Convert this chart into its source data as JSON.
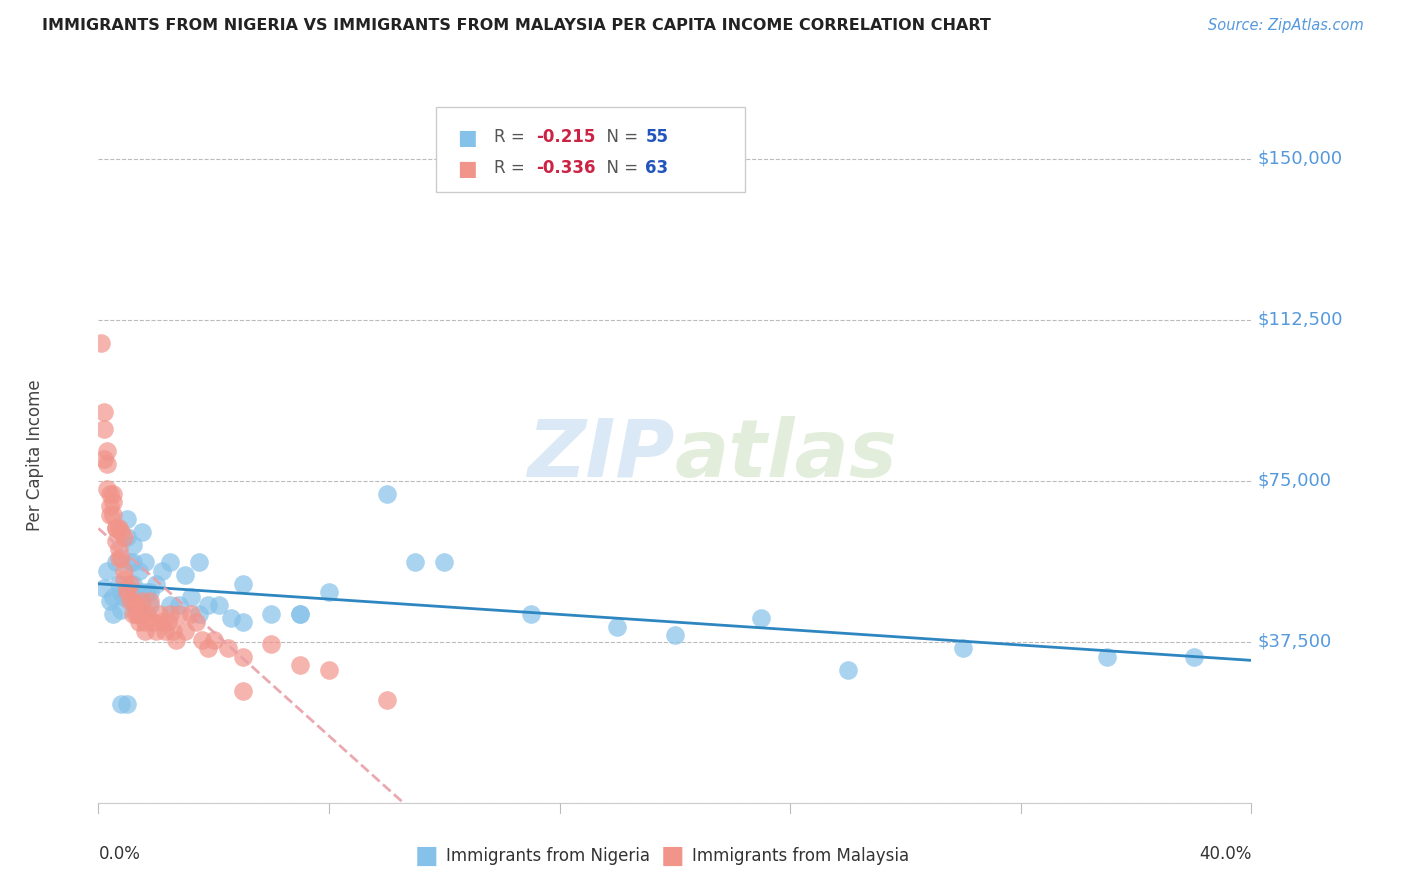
{
  "title": "IMMIGRANTS FROM NIGERIA VS IMMIGRANTS FROM MALAYSIA PER CAPITA INCOME CORRELATION CHART",
  "source": "Source: ZipAtlas.com",
  "ylabel": "Per Capita Income",
  "y_ticks": [
    0,
    37500,
    75000,
    112500,
    150000
  ],
  "y_tick_labels": [
    "",
    "$37,500",
    "$75,000",
    "$112,500",
    "$150,000"
  ],
  "x_min": 0.0,
  "x_max": 0.4,
  "y_min": 0,
  "y_max": 162000,
  "nigeria_color": "#85C1E9",
  "malaysia_color": "#F1948A",
  "nigeria_line_color": "#2E86C1",
  "malaysia_line_color": "#E8A0A8",
  "nigeria_R": -0.215,
  "nigeria_N": 55,
  "malaysia_R": -0.336,
  "malaysia_N": 63,
  "legend_label_nigeria": "Immigrants from Nigeria",
  "legend_label_malaysia": "Immigrants from Malaysia",
  "watermark_zip": "ZIP",
  "watermark_atlas": "atlas",
  "nigeria_scatter_x": [
    0.002,
    0.003,
    0.004,
    0.005,
    0.005,
    0.006,
    0.007,
    0.008,
    0.008,
    0.009,
    0.01,
    0.01,
    0.011,
    0.012,
    0.012,
    0.013,
    0.014,
    0.015,
    0.016,
    0.017,
    0.018,
    0.02,
    0.022,
    0.025,
    0.028,
    0.03,
    0.032,
    0.035,
    0.038,
    0.042,
    0.046,
    0.05,
    0.06,
    0.07,
    0.08,
    0.1,
    0.12,
    0.15,
    0.18,
    0.2,
    0.23,
    0.26,
    0.3,
    0.35,
    0.38,
    0.008,
    0.01,
    0.012,
    0.015,
    0.018,
    0.025,
    0.035,
    0.05,
    0.07,
    0.11
  ],
  "nigeria_scatter_y": [
    50000,
    54000,
    47000,
    44000,
    48000,
    56000,
    51000,
    49000,
    45000,
    48000,
    62000,
    66000,
    56000,
    51000,
    60000,
    49000,
    54000,
    63000,
    56000,
    49000,
    49000,
    51000,
    54000,
    56000,
    46000,
    53000,
    48000,
    56000,
    46000,
    46000,
    43000,
    51000,
    44000,
    44000,
    49000,
    72000,
    56000,
    44000,
    41000,
    39000,
    43000,
    31000,
    36000,
    34000,
    34000,
    23000,
    23000,
    56000,
    49000,
    46000,
    46000,
    44000,
    42000,
    44000,
    56000
  ],
  "malaysia_scatter_x": [
    0.001,
    0.002,
    0.002,
    0.003,
    0.003,
    0.004,
    0.004,
    0.005,
    0.005,
    0.006,
    0.006,
    0.007,
    0.007,
    0.008,
    0.008,
    0.009,
    0.009,
    0.01,
    0.01,
    0.011,
    0.011,
    0.012,
    0.012,
    0.013,
    0.013,
    0.014,
    0.014,
    0.015,
    0.015,
    0.016,
    0.016,
    0.017,
    0.018,
    0.019,
    0.02,
    0.021,
    0.022,
    0.023,
    0.024,
    0.025,
    0.026,
    0.027,
    0.028,
    0.03,
    0.032,
    0.034,
    0.036,
    0.038,
    0.04,
    0.045,
    0.05,
    0.06,
    0.07,
    0.08,
    0.1,
    0.002,
    0.003,
    0.004,
    0.005,
    0.006,
    0.007,
    0.009,
    0.05
  ],
  "malaysia_scatter_y": [
    107000,
    91000,
    80000,
    79000,
    73000,
    72000,
    69000,
    67000,
    70000,
    64000,
    61000,
    64000,
    59000,
    57000,
    63000,
    54000,
    52000,
    50000,
    49000,
    51000,
    47000,
    44000,
    47000,
    44000,
    46000,
    44000,
    42000,
    44000,
    47000,
    40000,
    42000,
    44000,
    47000,
    42000,
    40000,
    44000,
    42000,
    40000,
    42000,
    44000,
    40000,
    38000,
    44000,
    40000,
    44000,
    42000,
    38000,
    36000,
    38000,
    36000,
    34000,
    37000,
    32000,
    31000,
    24000,
    87000,
    82000,
    67000,
    72000,
    64000,
    57000,
    62000,
    26000
  ]
}
